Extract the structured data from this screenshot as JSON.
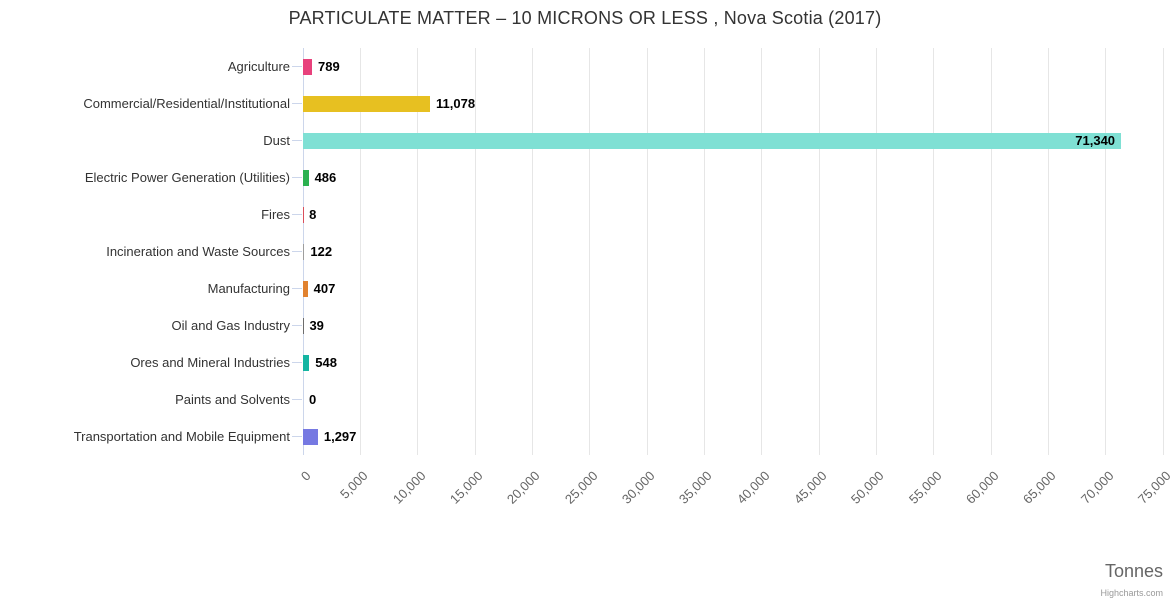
{
  "credits": "Highcharts.com",
  "chart_data": {
    "type": "bar",
    "orientation": "horizontal",
    "title": "PARTICULATE MATTER – 10 MICRONS OR LESS , Nova Scotia (2017)",
    "categories": [
      "Agriculture",
      "Commercial/Residential/Institutional",
      "Dust",
      "Electric Power Generation (Utilities)",
      "Fires",
      "Incineration and Waste Sources",
      "Manufacturing",
      "Oil and Gas Industry",
      "Ores and Mineral Industries",
      "Paints and Solvents",
      "Transportation and Mobile Equipment"
    ],
    "values": [
      789,
      11078,
      71340,
      486,
      8,
      122,
      407,
      39,
      548,
      0,
      1297
    ],
    "value_labels": [
      "789",
      "11,078",
      "71,340",
      "486",
      "8",
      "122",
      "407",
      "39",
      "548",
      "0",
      "1,297"
    ],
    "colors": [
      "#e8417c",
      "#e7c021",
      "#7fe0d4",
      "#2bb14f",
      "#d94f5c",
      "#9e9e9e",
      "#e1822f",
      "#6d6d6d",
      "#14b5a2",
      "#cfcfcf",
      "#7679e2"
    ],
    "xlabel": "Tonnes",
    "xlim": [
      0,
      75000
    ],
    "tick_interval": 5000,
    "x_tick_labels": [
      "0",
      "5,000",
      "10,000",
      "15,000",
      "20,000",
      "25,000",
      "30,000",
      "35,000",
      "40,000",
      "45,000",
      "50,000",
      "55,000",
      "60,000",
      "65,000",
      "70,000",
      "75,000"
    ],
    "grid": true,
    "legend": false,
    "data_label_color": "#000000",
    "grid_color": "#e6e6e6",
    "axis_color": "#ccd6eb"
  }
}
